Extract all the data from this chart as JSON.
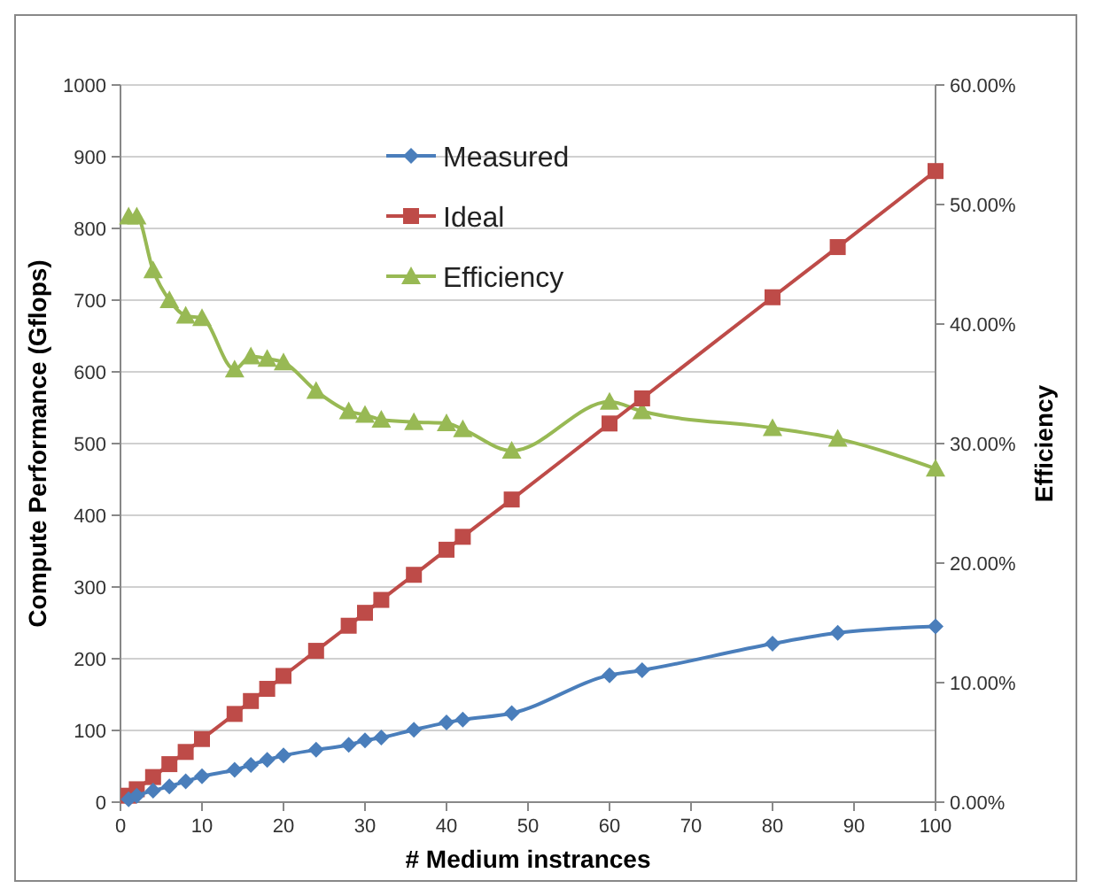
{
  "chart_data": {
    "type": "line",
    "xlabel": "# Medium instrances",
    "ylabel": "Compute Performance (Gflops)",
    "y2label": "Efficiency",
    "x": [
      1,
      2,
      4,
      6,
      8,
      10,
      14,
      16,
      18,
      20,
      24,
      28,
      30,
      32,
      36,
      40,
      42,
      48,
      60,
      64,
      80,
      88,
      100
    ],
    "series": [
      {
        "name": "Measured",
        "color": "#4a7ebb",
        "marker": "diamond",
        "values": [
          4,
          9,
          16,
          22,
          29,
          36,
          45,
          52,
          59,
          65,
          73,
          80,
          86,
          90,
          101,
          111,
          115,
          124,
          177,
          184,
          221,
          236,
          245
        ]
      },
      {
        "name": "Ideal",
        "color": "#be4b48",
        "marker": "square",
        "values": [
          9,
          18,
          35,
          53,
          70,
          88,
          123,
          141,
          158,
          176,
          211,
          246,
          264,
          282,
          317,
          352,
          370,
          422,
          528,
          563,
          704,
          774,
          880
        ]
      },
      {
        "name": "Efficiency",
        "color": "#98b954",
        "marker": "triangle",
        "axis": "y2",
        "values": [
          49,
          49,
          44.5,
          42,
          40.7,
          40.5,
          36.2,
          37.3,
          37.1,
          36.8,
          34.4,
          32.7,
          32.4,
          32,
          31.8,
          31.7,
          31.2,
          29.4,
          33.5,
          32.7,
          31.3,
          30.4,
          27.9
        ]
      }
    ],
    "xlim": [
      0,
      100
    ],
    "xticks": [
      0,
      10,
      20,
      30,
      40,
      50,
      60,
      70,
      80,
      90,
      100
    ],
    "ylim": [
      0,
      1000
    ],
    "yticks": [
      0,
      100,
      200,
      300,
      400,
      500,
      600,
      700,
      800,
      900,
      1000
    ],
    "y2lim": [
      0,
      60
    ],
    "y2ticks": [
      {
        "value": 0,
        "label": "0.00%"
      },
      {
        "value": 10,
        "label": "10.00%"
      },
      {
        "value": 20,
        "label": "20.00%"
      },
      {
        "value": 30,
        "label": "30.00%"
      },
      {
        "value": 40,
        "label": "40.00%"
      },
      {
        "value": 50,
        "label": "50.00%"
      },
      {
        "value": 60,
        "label": "60.00%"
      }
    ],
    "grid": "y",
    "legend": "top",
    "line_style": "solid"
  }
}
